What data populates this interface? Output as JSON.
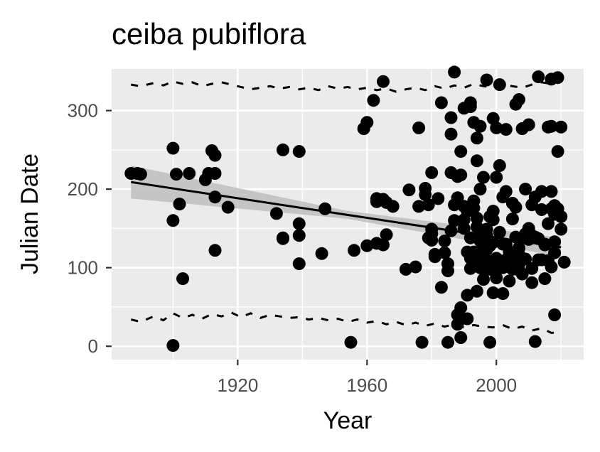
{
  "chart_data": {
    "type": "scatter",
    "title": "ceiba pubiflora",
    "xlabel": "Year",
    "ylabel": "Julian Date",
    "xlim": [
      1881,
      2027
    ],
    "ylim": [
      -17,
      353
    ],
    "x_ticks": [
      1920,
      1960,
      2000
    ],
    "y_ticks": [
      0,
      100,
      200,
      300
    ],
    "x_minor_ticks": [
      1900,
      1940,
      1980,
      2020
    ],
    "y_minor_ticks": [
      50,
      150,
      250
    ],
    "grid": true,
    "colors": {
      "panel": "#ebebeb",
      "grid": "#ffffff",
      "points": "#000000",
      "ribbon": "#bebebe",
      "tick": "#333333"
    },
    "trend": {
      "x": [
        1887,
        2020
      ],
      "y": [
        209,
        126
      ],
      "ci_half_width_start": 21,
      "ci_half_width_mid": 5,
      "ci_half_width_end": 12
    },
    "upper_band": {
      "x": [
        1887,
        1890,
        1894,
        1897,
        1900,
        1903,
        1906,
        1909,
        1912,
        1915,
        1918,
        1921,
        1924,
        1927,
        1930,
        1933,
        1936,
        1939,
        1942,
        1945,
        1948,
        1951,
        1954,
        1957,
        1960,
        1963,
        1966,
        1969,
        1972,
        1975,
        1978,
        1981,
        1984,
        1987,
        1990,
        1993,
        1996,
        1999,
        2002,
        2005,
        2008,
        2011,
        2014,
        2017,
        2020
      ],
      "y": [
        333,
        331,
        335,
        332,
        337,
        334,
        336,
        331,
        334,
        336,
        333,
        330,
        327,
        329,
        331,
        328,
        330,
        327,
        329,
        326,
        331,
        328,
        330,
        327,
        329,
        326,
        328,
        324,
        327,
        329,
        326,
        331,
        328,
        332,
        329,
        334,
        331,
        330,
        333,
        331,
        329,
        333,
        336,
        334,
        338
      ]
    },
    "lower_band": {
      "x": [
        1887,
        1890,
        1894,
        1897,
        1900,
        1903,
        1906,
        1909,
        1912,
        1915,
        1918,
        1921,
        1924,
        1927,
        1930,
        1933,
        1936,
        1939,
        1942,
        1945,
        1948,
        1951,
        1954,
        1957,
        1960,
        1963,
        1966,
        1969,
        1972,
        1975,
        1978,
        1981,
        1984,
        1987,
        1990,
        1993,
        1996,
        1999,
        2002,
        2005,
        2008,
        2011,
        2014,
        2017,
        2020
      ],
      "y": [
        34,
        31,
        38,
        33,
        42,
        36,
        40,
        35,
        41,
        38,
        43,
        37,
        42,
        36,
        40,
        38,
        36,
        37,
        34,
        36,
        33,
        35,
        31,
        34,
        30,
        32,
        28,
        31,
        27,
        30,
        26,
        29,
        25,
        28,
        24,
        27,
        25,
        24,
        27,
        22,
        25,
        20,
        23,
        17,
        18
      ]
    },
    "points": {
      "x": [
        1887,
        1889,
        1890,
        1900,
        1900,
        1900,
        1901,
        1902,
        1903,
        1905,
        1910,
        1911,
        1912,
        1913,
        1913,
        1913,
        1913,
        1917,
        1932,
        1934,
        1934,
        1934,
        1939,
        1939,
        1939,
        1939,
        1946,
        1947,
        1955,
        1956,
        1959,
        1960,
        1960,
        1962,
        1963,
        1963,
        1963,
        1965,
        1965,
        1965,
        1966,
        1966,
        1968,
        1972,
        1973,
        1975,
        1976,
        1976,
        1977,
        1978,
        1978,
        1979,
        1979,
        1980,
        1980,
        1980,
        1980,
        1981,
        1981,
        1982,
        1983,
        1983,
        1984,
        1984,
        1985,
        1985,
        1985,
        1986,
        1986,
        1986,
        1986,
        1987,
        1987,
        1987,
        1988,
        1988,
        1988,
        1988,
        1989,
        1989,
        1989,
        1989,
        1990,
        1990,
        1990,
        1990,
        1991,
        1991,
        1991,
        1991,
        1992,
        1992,
        1992,
        1992,
        1992,
        1993,
        1993,
        1993,
        1993,
        1993,
        1994,
        1994,
        1994,
        1994,
        1994,
        1995,
        1995,
        1995,
        1995,
        1995,
        1996,
        1996,
        1996,
        1996,
        1996,
        1996,
        1997,
        1997,
        1997,
        1997,
        1997,
        1997,
        1998,
        1998,
        1998,
        1998,
        1998,
        1999,
        1999,
        1999,
        1999,
        1999,
        2000,
        2000,
        2000,
        2000,
        2000,
        2001,
        2001,
        2001,
        2001,
        2002,
        2002,
        2002,
        2002,
        2003,
        2003,
        2003,
        2003,
        2004,
        2004,
        2005,
        2005,
        2005,
        2006,
        2006,
        2006,
        2006,
        2007,
        2007,
        2007,
        2007,
        2007,
        2008,
        2008,
        2008,
        2009,
        2009,
        2009,
        2010,
        2010,
        2010,
        2011,
        2011,
        2011,
        2011,
        2012,
        2012,
        2012,
        2013,
        2013,
        2013,
        2014,
        2014,
        2014,
        2015,
        2015,
        2015,
        2016,
        2016,
        2016,
        2017,
        2017,
        2017,
        2017,
        2017,
        2018,
        2018,
        2018,
        2018,
        2018,
        2019,
        2019,
        2019,
        2020,
        2020,
        2020,
        2021
      ],
      "y": [
        220,
        220,
        219,
        1,
        160,
        252,
        219,
        181,
        86,
        220,
        212,
        220,
        249,
        220,
        243,
        122,
        190,
        177,
        169,
        138,
        137,
        250,
        156,
        141,
        248,
        105,
        118,
        175,
        5,
        122,
        277,
        128,
        285,
        313,
        188,
        131,
        184,
        187,
        337,
        129,
        142,
        183,
        178,
        98,
        199,
        101,
        178,
        278,
        5,
        193,
        201,
        180,
        138,
        221,
        149,
        135,
        143,
        114,
        117,
        188,
        75,
        310,
        119,
        134,
        5,
        96,
        105,
        147,
        221,
        270,
        291,
        160,
        180,
        349,
        28,
        40,
        216,
        189,
        49,
        11,
        248,
        218,
        161,
        150,
        178,
        303,
        35,
        120,
        172,
        65,
        138,
        112,
        305,
        310,
        99,
        185,
        176,
        120,
        285,
        108,
        163,
        70,
        236,
        152,
        265,
        147,
        100,
        134,
        200,
        280,
        215,
        114,
        126,
        98,
        146,
        85,
        110,
        141,
        123,
        149,
        104,
        339,
        165,
        98,
        106,
        5,
        128,
        290,
        161,
        172,
        68,
        132,
        112,
        278,
        87,
        98,
        215,
        105,
        230,
        333,
        145,
        130,
        100,
        67,
        190,
        276,
        197,
        110,
        129,
        83,
        120,
        98,
        162,
        182,
        139,
        177,
        107,
        308,
        314,
        117,
        97,
        125,
        104,
        138,
        277,
        92,
        111,
        200,
        143,
        282,
        150,
        136,
        99,
        180,
        81,
        141,
        139,
        6,
        190,
        343,
        137,
        110,
        197,
        174,
        110,
        86,
        130,
        129,
        156,
        279,
        109,
        175,
        197,
        101,
        280,
        340,
        119,
        133,
        179,
        168,
        40,
        248,
        175,
        342,
        165,
        279,
        149,
        107
      ]
    }
  }
}
